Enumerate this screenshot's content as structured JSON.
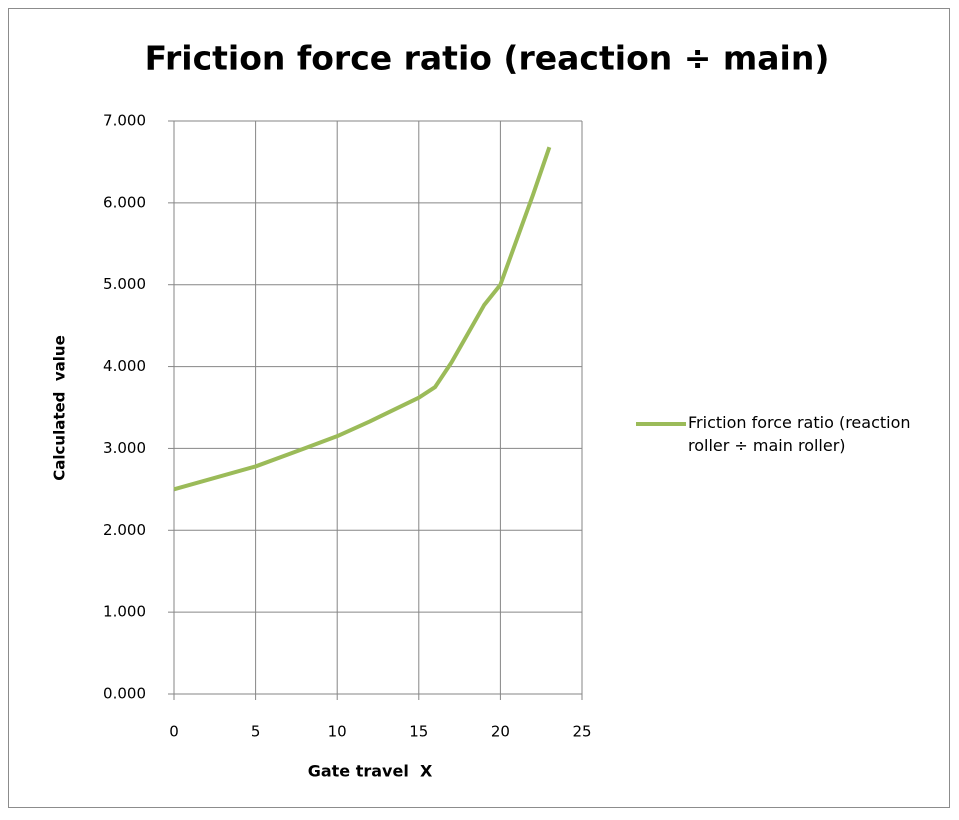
{
  "chart_data": {
    "type": "line",
    "title": "Friction force ratio (reaction ÷ main)",
    "x_label": "Gate travel  X",
    "y_label": "Calculated  value",
    "x": [
      0,
      5,
      8,
      10,
      12,
      15,
      16,
      17,
      18,
      19,
      20,
      21,
      22,
      23
    ],
    "series": [
      {
        "name": "Friction force ratio (reaction roller ÷ main roller)",
        "color": "#9bbb59",
        "values": [
          2.5,
          2.78,
          3.0,
          3.15,
          3.33,
          3.62,
          3.75,
          4.05,
          4.4,
          4.75,
          5.0,
          5.55,
          6.1,
          6.68
        ]
      }
    ],
    "xlim": [
      0,
      25
    ],
    "xticks": [
      0,
      5,
      10,
      15,
      20,
      25
    ],
    "ylim": [
      0,
      7
    ],
    "yticks": [
      {
        "value": 0,
        "label": "0.000"
      },
      {
        "value": 1,
        "label": "1.000"
      },
      {
        "value": 2,
        "label": "2.000"
      },
      {
        "value": 3,
        "label": "3.000"
      },
      {
        "value": 4,
        "label": "4.000"
      },
      {
        "value": 5,
        "label": "5.000"
      },
      {
        "value": 6,
        "label": "6.000"
      },
      {
        "value": 7,
        "label": "7.000"
      }
    ],
    "grid": true,
    "legend": "right"
  }
}
